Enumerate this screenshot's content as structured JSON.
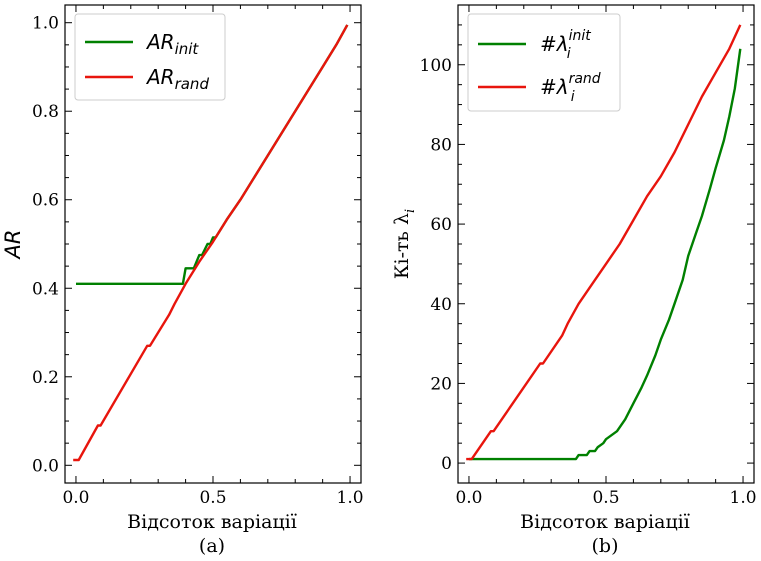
{
  "chart_data": [
    {
      "type": "line",
      "caption": "(a)",
      "xlabel": "Відсоток варіації",
      "ylabel": "AR",
      "xlim": [
        -0.04,
        1.04
      ],
      "ylim": [
        -0.04,
        1.04
      ],
      "xticks": [
        0.0,
        0.5,
        1.0
      ],
      "xtick_labels": [
        "0.0",
        "0.5",
        "1.0"
      ],
      "yticks": [
        0.0,
        0.2,
        0.4,
        0.6,
        0.8,
        1.0
      ],
      "ytick_labels": [
        "0.0",
        "0.2",
        "0.4",
        "0.6",
        "0.8",
        "1.0"
      ],
      "legend_position": "top-left",
      "series": [
        {
          "name": "AR",
          "name_sub": "init",
          "color": "#008000",
          "x": [
            0.0,
            0.39,
            0.4,
            0.42,
            0.43,
            0.45,
            0.46,
            0.48,
            0.49,
            0.5,
            0.51,
            0.52,
            0.55,
            0.6,
            0.65,
            0.7,
            0.75,
            0.8,
            0.85,
            0.9,
            0.95,
            0.99
          ],
          "y": [
            0.41,
            0.41,
            0.445,
            0.445,
            0.445,
            0.475,
            0.475,
            0.5,
            0.5,
            0.515,
            0.515,
            0.525,
            0.555,
            0.6,
            0.65,
            0.7,
            0.75,
            0.8,
            0.85,
            0.9,
            0.95,
            0.995
          ]
        },
        {
          "name": "AR",
          "name_sub": "rand",
          "color": "#e8150d",
          "x": [
            -0.01,
            0.01,
            0.08,
            0.09,
            0.26,
            0.27,
            0.34,
            0.36,
            0.4,
            0.45,
            0.5,
            0.55,
            0.6,
            0.65,
            0.7,
            0.75,
            0.8,
            0.85,
            0.9,
            0.95,
            0.99
          ],
          "y": [
            0.012,
            0.012,
            0.09,
            0.09,
            0.27,
            0.27,
            0.34,
            0.365,
            0.41,
            0.46,
            0.505,
            0.555,
            0.6,
            0.65,
            0.7,
            0.75,
            0.8,
            0.85,
            0.9,
            0.95,
            0.995
          ]
        }
      ]
    },
    {
      "type": "line",
      "caption": "(b)",
      "xlabel": "Відсоток варіації",
      "ylabel": "Кі-ть λ",
      "ylabel_sub": "i",
      "xlim": [
        -0.04,
        1.04
      ],
      "ylim": [
        -5,
        115
      ],
      "xticks": [
        0.0,
        0.5,
        1.0
      ],
      "xtick_labels": [
        "0.0",
        "0.5",
        "1.0"
      ],
      "yticks": [
        0,
        20,
        40,
        60,
        80,
        100
      ],
      "ytick_labels": [
        "0",
        "20",
        "40",
        "60",
        "80",
        "100"
      ],
      "legend_position": "top-left",
      "series": [
        {
          "name": "#λ",
          "name_sub": "i",
          "name_sup": "init",
          "color": "#008000",
          "x": [
            0.0,
            0.39,
            0.4,
            0.43,
            0.44,
            0.46,
            0.47,
            0.49,
            0.5,
            0.52,
            0.54,
            0.57,
            0.6,
            0.63,
            0.65,
            0.68,
            0.7,
            0.73,
            0.75,
            0.78,
            0.8,
            0.83,
            0.85,
            0.88,
            0.9,
            0.93,
            0.95,
            0.97,
            0.99
          ],
          "y": [
            1,
            1,
            2,
            2,
            3,
            3,
            4,
            5,
            6,
            7,
            8,
            11,
            15,
            19,
            22,
            27,
            31,
            36,
            40,
            46,
            52,
            58,
            62,
            69,
            74,
            81,
            87,
            94,
            104
          ]
        },
        {
          "name": "#λ",
          "name_sub": "i",
          "name_sup": "rand",
          "color": "#e8150d",
          "x": [
            -0.01,
            0.01,
            0.08,
            0.09,
            0.26,
            0.27,
            0.34,
            0.36,
            0.4,
            0.45,
            0.5,
            0.55,
            0.6,
            0.65,
            0.7,
            0.75,
            0.8,
            0.85,
            0.9,
            0.95,
            0.99
          ],
          "y": [
            1,
            1,
            8,
            8,
            25,
            25,
            32,
            35,
            40,
            45,
            50,
            55,
            61,
            67,
            72,
            78,
            85,
            92,
            98,
            104,
            110
          ]
        }
      ]
    }
  ]
}
